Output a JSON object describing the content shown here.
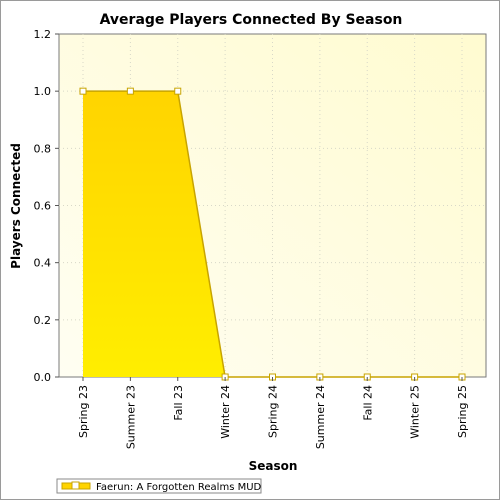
{
  "chart_data": {
    "type": "area",
    "title": "Average Players Connected By Season",
    "xlabel": "Season",
    "ylabel": "Players Connected",
    "categories": [
      "Spring 23",
      "Summer 23",
      "Fall 23",
      "Winter 24",
      "Spring 24",
      "Summer 24",
      "Fall 24",
      "Winter 25",
      "Spring 25"
    ],
    "series": [
      {
        "name": "Faerun: A Forgotten Realms MUD",
        "values": [
          1,
          1,
          1,
          0,
          0,
          0,
          0,
          0,
          0
        ]
      }
    ],
    "ylim": [
      0,
      1.2
    ],
    "yticks": [
      "0.0",
      "0.2",
      "0.4",
      "0.6",
      "0.8",
      "1.0",
      "1.2"
    ],
    "grid": true,
    "legend": "bottom-left",
    "colors": {
      "fill_top": "#ffd400",
      "fill_bottom": "#ffee00",
      "line": "#c8a400",
      "plot_bg_light": "#fffef2",
      "plot_bg_dark": "#fffbd0"
    }
  }
}
